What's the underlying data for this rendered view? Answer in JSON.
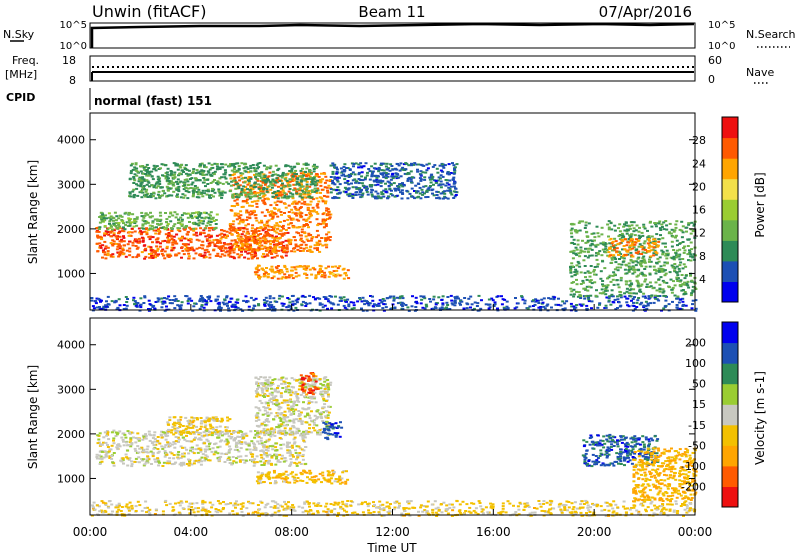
{
  "header": {
    "station": "Unwin (fitACF)",
    "beam": "Beam 11",
    "date": "07/Apr/2016"
  },
  "top_panels": {
    "nsky_label": "N.Sky",
    "nsky_ticks": [
      "10^5",
      "10^0"
    ],
    "nsearch_label": "N.Search",
    "nsearch_ticks": [
      "10^5",
      "10^0"
    ],
    "freq_label_1": "Freq.",
    "freq_label_2": "[MHz]",
    "freq_ticks": [
      "18",
      "8"
    ],
    "nave_label": "Nave",
    "nave_ticks": [
      "60",
      "0"
    ],
    "cpid_label": "CPID",
    "cpid_text": "normal (fast) 151"
  },
  "chart_data": [
    {
      "type": "heatmap",
      "name": "power",
      "ylabel": "Slant Range [km]",
      "ylim": [
        180,
        4600
      ],
      "yticks": [
        "4000",
        "3000",
        "2000",
        "1000"
      ],
      "colorbar_label": "Power [dB]",
      "colorbar_ticks": [
        "28",
        "24",
        "20",
        "16",
        "12",
        "8",
        "4"
      ],
      "colorbar_range": [
        0,
        32
      ],
      "colors": [
        "#0000ee",
        "#1d50b4",
        "#2e8b57",
        "#6bb34a",
        "#9acd32",
        "#f3e04a",
        "#ffa500",
        "#ff5a00",
        "#ee1010"
      ],
      "regions": [
        {
          "t0": 0.2,
          "t1": 7.8,
          "r0": 1350,
          "r1": 2050,
          "value": 27
        },
        {
          "t0": 5.5,
          "t1": 9.5,
          "r0": 1500,
          "r1": 3300,
          "value": 25
        },
        {
          "t0": 6.5,
          "t1": 10.2,
          "r0": 900,
          "r1": 1200,
          "value": 24
        },
        {
          "t0": 0.3,
          "t1": 5.0,
          "r0": 2000,
          "r1": 2400,
          "value": 12
        },
        {
          "t0": 1.5,
          "t1": 9.0,
          "r0": 2700,
          "r1": 3500,
          "value": 10
        },
        {
          "t0": 9.5,
          "t1": 14.5,
          "r0": 2700,
          "r1": 3500,
          "value": 6
        },
        {
          "t0": 0.0,
          "t1": 24.0,
          "r0": 180,
          "r1": 520,
          "value": 5
        },
        {
          "t0": 19.0,
          "t1": 24.0,
          "r0": 500,
          "r1": 2200,
          "value": 11
        },
        {
          "t0": 20.5,
          "t1": 22.5,
          "r0": 1400,
          "r1": 1800,
          "value": 24
        }
      ]
    },
    {
      "type": "heatmap",
      "name": "velocity",
      "ylabel": "Slant Range [km]",
      "ylim": [
        180,
        4600
      ],
      "yticks": [
        "4000",
        "3000",
        "2000",
        "1000"
      ],
      "xlabel": "Time UT",
      "xticks": [
        "00:00",
        "04:00",
        "08:00",
        "12:00",
        "16:00",
        "20:00",
        "00:00"
      ],
      "xrange": [
        0,
        24
      ],
      "colorbar_label": "Velocity [m s-1]",
      "colorbar_ticks": [
        "200",
        "100",
        "50",
        "15",
        "-15",
        "-50",
        "-100",
        "-200"
      ],
      "colorbar_range": [
        -250,
        250
      ],
      "colors": [
        "#ee1010",
        "#ff5a00",
        "#ffa500",
        "#f3c000",
        "#c8c8c0",
        "#9acd32",
        "#2e8b57",
        "#1d50b4",
        "#0000ee"
      ],
      "regions": [
        {
          "t0": 0.2,
          "t1": 8.5,
          "r0": 1300,
          "r1": 2100,
          "value": 0
        },
        {
          "t0": 6.5,
          "t1": 9.5,
          "r0": 2000,
          "r1": 3300,
          "value": 0
        },
        {
          "t0": 8.3,
          "t1": 9.0,
          "r0": 2900,
          "r1": 3400,
          "value": -180
        },
        {
          "t0": 9.2,
          "t1": 10.0,
          "r0": 1900,
          "r1": 2300,
          "value": 180
        },
        {
          "t0": 6.5,
          "t1": 10.2,
          "r0": 900,
          "r1": 1200,
          "value": -60
        },
        {
          "t0": 0.0,
          "t1": 24.0,
          "r0": 180,
          "r1": 520,
          "value": -40
        },
        {
          "t0": 19.5,
          "t1": 22.5,
          "r0": 1300,
          "r1": 2000,
          "value": 160
        },
        {
          "t0": 21.5,
          "t1": 24.0,
          "r0": 500,
          "r1": 1700,
          "value": -80
        },
        {
          "t0": 3.0,
          "t1": 5.5,
          "r0": 2000,
          "r1": 2400,
          "value": -40
        }
      ]
    }
  ]
}
